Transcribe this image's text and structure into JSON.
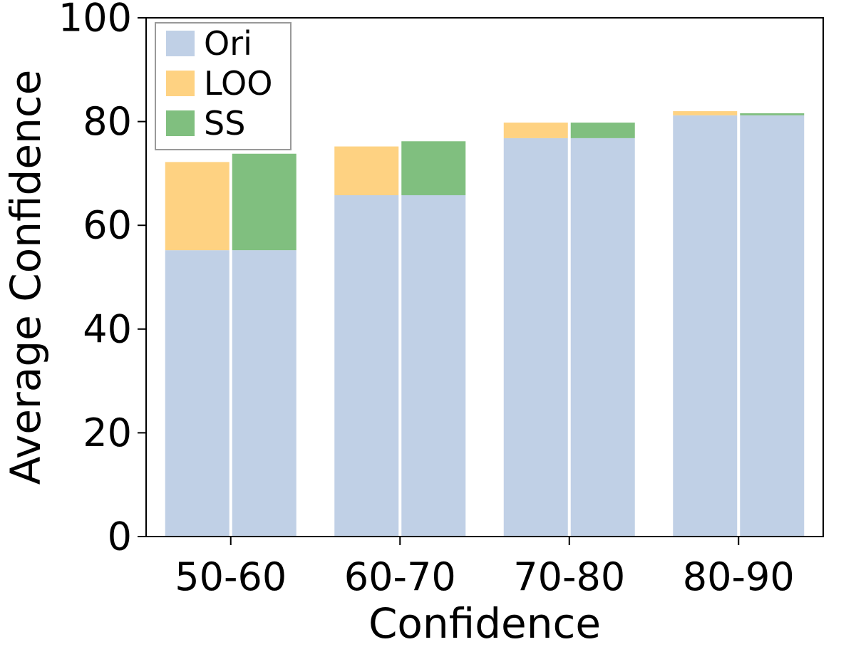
{
  "chart_data": {
    "type": "bar",
    "stacked": true,
    "xlabel": "Confidence",
    "ylabel": "Average Confidence",
    "categories": [
      "50-60",
      "60-70",
      "70-80",
      "80-90"
    ],
    "ylim": [
      0,
      100
    ],
    "yticks": [
      0,
      20,
      40,
      60,
      80,
      100
    ],
    "grid": false,
    "legend_position": "top-left",
    "groups": [
      {
        "name": "LOO",
        "base_series": "Ori",
        "base_values": [
          55.2,
          65.8,
          76.8,
          81.2
        ],
        "totals": [
          72.2,
          75.2,
          79.8,
          82.0
        ]
      },
      {
        "name": "SS",
        "base_series": "Ori",
        "base_values": [
          55.2,
          65.8,
          76.8,
          81.2
        ],
        "totals": [
          73.8,
          76.2,
          79.8,
          81.6
        ]
      }
    ],
    "legend": [
      {
        "name": "Ori",
        "color": "#c0d0e6"
      },
      {
        "name": "LOO",
        "color": "#fed282"
      },
      {
        "name": "SS",
        "color": "#80bf7f"
      }
    ]
  }
}
